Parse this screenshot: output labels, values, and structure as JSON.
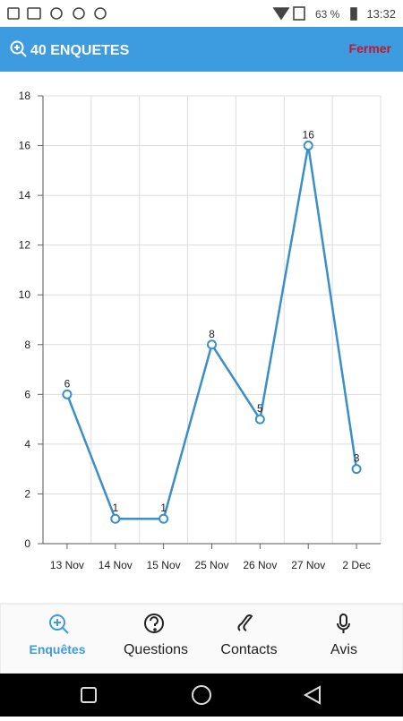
{
  "status_bar": {
    "battery": "63 %",
    "time": "13:32"
  },
  "header": {
    "title": "40 ENQUETES",
    "close": "Fermer"
  },
  "chart_data": {
    "type": "line",
    "categories": [
      "13 Nov",
      "14 Nov",
      "15 Nov",
      "25 Nov",
      "26 Nov",
      "27 Nov",
      "2 Dec"
    ],
    "values": [
      6,
      1,
      1,
      8,
      5,
      16,
      3
    ],
    "color": "#3a8fc8",
    "ylim": [
      0,
      18
    ],
    "yticks": [
      0,
      2,
      4,
      6,
      8,
      10,
      12,
      14,
      16,
      18
    ],
    "grid": true
  },
  "tabs": [
    "Enquêtes",
    "Questions",
    "Contacts",
    "Avis"
  ]
}
